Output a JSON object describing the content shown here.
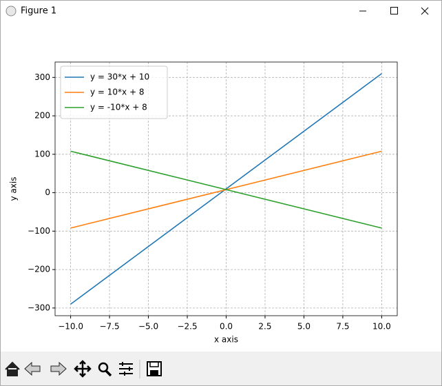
{
  "window": {
    "title": "Figure 1"
  },
  "chart_data": {
    "type": "line",
    "xlabel": "x axis",
    "ylabel": "y axis",
    "x": [
      -10,
      10
    ],
    "series": [
      {
        "name": "y = 30*x + 10",
        "color": "#1f77b4",
        "values": [
          -290,
          310
        ]
      },
      {
        "name": "y = 10*x + 8",
        "color": "#ff7f0e",
        "values": [
          -92,
          108
        ]
      },
      {
        "name": "y = -10*x + 8",
        "color": "#2ca02c",
        "values": [
          108,
          -92
        ]
      }
    ],
    "xlim": [
      -11,
      11
    ],
    "xticks": [
      {
        "value": -10,
        "label": "−10.0"
      },
      {
        "value": -7.5,
        "label": "−7.5"
      },
      {
        "value": -5,
        "label": "−5.0"
      },
      {
        "value": -2.5,
        "label": "−2.5"
      },
      {
        "value": 0,
        "label": "0.0"
      },
      2.5,
      {
        "value": 5,
        "label": "5.0"
      },
      7.5,
      {
        "value": 10,
        "label": "10.0"
      }
    ],
    "ylim": [
      -320,
      340
    ],
    "yticks": [
      {
        "value": -300,
        "label": "−300"
      },
      {
        "value": -200,
        "label": "−200"
      },
      {
        "value": -100,
        "label": "−100"
      },
      0,
      100,
      200,
      300
    ],
    "grid": true,
    "legend": "upper left"
  }
}
